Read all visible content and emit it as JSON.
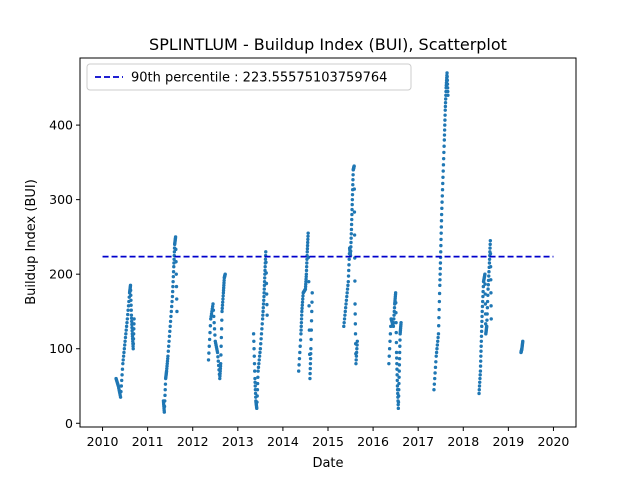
{
  "chart_data": {
    "type": "scatter",
    "title": "SPLINTLUM - Buildup Index (BUI), Scatterplot",
    "xlabel": "Date",
    "ylabel": "Buildup Index (BUI)",
    "xlim": [
      2009.5,
      2020.5
    ],
    "ylim": [
      -5,
      490
    ],
    "xticks": [
      "2010",
      "2011",
      "2012",
      "2013",
      "2014",
      "2015",
      "2016",
      "2017",
      "2018",
      "2019",
      "2020"
    ],
    "yticks": [
      0,
      100,
      200,
      300,
      400
    ],
    "marker_color": "#1f77b4",
    "reference_line": {
      "label": "90th percentile : 223.55575103759764",
      "value": 223.55575103759764,
      "x_range": [
        2010,
        2020
      ],
      "color": "#0000cc",
      "style": "dashed"
    },
    "legend": {
      "position": "top-left"
    },
    "grid": false,
    "seasons": [
      {
        "year": 2010,
        "points": [
          [
            2010.3,
            60
          ],
          [
            2010.35,
            50
          ],
          [
            2010.4,
            35
          ],
          [
            2010.45,
            80
          ],
          [
            2010.5,
            110
          ],
          [
            2010.55,
            140
          ],
          [
            2010.6,
            175
          ],
          [
            2010.62,
            185
          ],
          [
            2010.64,
            145
          ],
          [
            2010.66,
            120
          ],
          [
            2010.68,
            100
          ],
          [
            2010.7,
            140
          ]
        ]
      },
      {
        "year": 2011,
        "points": [
          [
            2011.35,
            30
          ],
          [
            2011.37,
            15
          ],
          [
            2011.4,
            60
          ],
          [
            2011.42,
            70
          ],
          [
            2011.45,
            90
          ],
          [
            2011.5,
            130
          ],
          [
            2011.55,
            170
          ],
          [
            2011.58,
            210
          ],
          [
            2011.6,
            240
          ],
          [
            2011.62,
            250
          ],
          [
            2011.65,
            150
          ]
        ]
      },
      {
        "year": 2012,
        "points": [
          [
            2012.35,
            85
          ],
          [
            2012.4,
            140
          ],
          [
            2012.45,
            160
          ],
          [
            2012.5,
            110
          ],
          [
            2012.55,
            95
          ],
          [
            2012.6,
            60
          ],
          [
            2012.62,
            80
          ],
          [
            2012.65,
            150
          ],
          [
            2012.68,
            175
          ],
          [
            2012.7,
            195
          ],
          [
            2012.72,
            200
          ]
        ]
      },
      {
        "year": 2013,
        "points": [
          [
            2013.35,
            120
          ],
          [
            2013.38,
            60
          ],
          [
            2013.4,
            30
          ],
          [
            2013.42,
            20
          ],
          [
            2013.45,
            70
          ],
          [
            2013.5,
            100
          ],
          [
            2013.55,
            140
          ],
          [
            2013.58,
            170
          ],
          [
            2013.6,
            200
          ],
          [
            2013.62,
            230
          ],
          [
            2013.65,
            145
          ]
        ]
      },
      {
        "year": 2014,
        "points": [
          [
            2014.35,
            70
          ],
          [
            2014.4,
            120
          ],
          [
            2014.42,
            150
          ],
          [
            2014.45,
            175
          ],
          [
            2014.5,
            180
          ],
          [
            2014.52,
            200
          ],
          [
            2014.54,
            230
          ],
          [
            2014.56,
            255
          ],
          [
            2014.6,
            60
          ],
          [
            2014.62,
            100
          ],
          [
            2014.65,
            175
          ]
        ]
      },
      {
        "year": 2015,
        "points": [
          [
            2015.35,
            130
          ],
          [
            2015.4,
            160
          ],
          [
            2015.45,
            190
          ],
          [
            2015.48,
            235
          ],
          [
            2015.5,
            225
          ],
          [
            2015.52,
            260
          ],
          [
            2015.54,
            300
          ],
          [
            2015.56,
            340
          ],
          [
            2015.58,
            345
          ],
          [
            2015.6,
            160
          ],
          [
            2015.62,
            80
          ],
          [
            2015.65,
            110
          ]
        ]
      },
      {
        "year": 2016,
        "points": [
          [
            2016.35,
            80
          ],
          [
            2016.4,
            140
          ],
          [
            2016.45,
            130
          ],
          [
            2016.48,
            160
          ],
          [
            2016.5,
            175
          ],
          [
            2016.52,
            95
          ],
          [
            2016.54,
            50
          ],
          [
            2016.56,
            20
          ],
          [
            2016.58,
            70
          ],
          [
            2016.6,
            120
          ],
          [
            2016.62,
            135
          ]
        ]
      },
      {
        "year": 2017,
        "points": [
          [
            2017.35,
            45
          ],
          [
            2017.4,
            90
          ],
          [
            2017.45,
            120
          ],
          [
            2017.48,
            185
          ],
          [
            2017.5,
            230
          ],
          [
            2017.52,
            280
          ],
          [
            2017.55,
            330
          ],
          [
            2017.58,
            380
          ],
          [
            2017.6,
            420
          ],
          [
            2017.62,
            450
          ],
          [
            2017.64,
            470
          ],
          [
            2017.66,
            440
          ]
        ]
      },
      {
        "year": 2018,
        "points": [
          [
            2018.35,
            40
          ],
          [
            2018.38,
            70
          ],
          [
            2018.4,
            110
          ],
          [
            2018.42,
            150
          ],
          [
            2018.45,
            190
          ],
          [
            2018.48,
            200
          ],
          [
            2018.5,
            120
          ],
          [
            2018.52,
            130
          ],
          [
            2018.55,
            180
          ],
          [
            2018.58,
            215
          ],
          [
            2018.6,
            245
          ],
          [
            2018.62,
            140
          ]
        ]
      },
      {
        "year": 2019,
        "points": [
          [
            2019.28,
            95
          ],
          [
            2019.3,
            100
          ],
          [
            2019.32,
            110
          ]
        ]
      }
    ]
  }
}
